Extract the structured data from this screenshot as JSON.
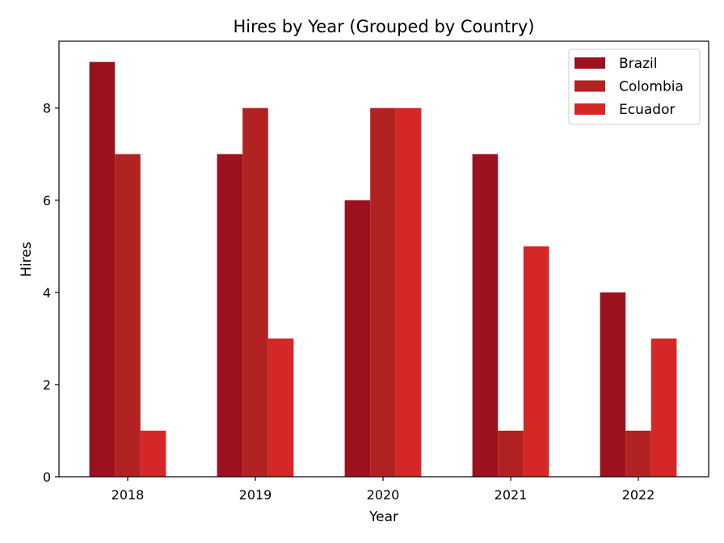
{
  "chart_data": {
    "type": "bar",
    "title": "Hires by Year (Grouped by Country)",
    "xlabel": "Year",
    "ylabel": "Hires",
    "categories": [
      "2018",
      "2019",
      "2020",
      "2021",
      "2022"
    ],
    "series": [
      {
        "name": "Brazil",
        "color": "#9b111e",
        "values": [
          9,
          7,
          6,
          7,
          4
        ]
      },
      {
        "name": "Colombia",
        "color": "#b22222",
        "values": [
          7,
          8,
          8,
          1,
          1
        ]
      },
      {
        "name": "Ecuador",
        "color": "#d62728",
        "values": [
          1,
          3,
          8,
          5,
          3
        ]
      }
    ],
    "ylim": [
      0,
      9.45
    ],
    "yticks": [
      "0",
      "2",
      "4",
      "6",
      "8"
    ],
    "grid": false,
    "legend_position": "top-right"
  }
}
